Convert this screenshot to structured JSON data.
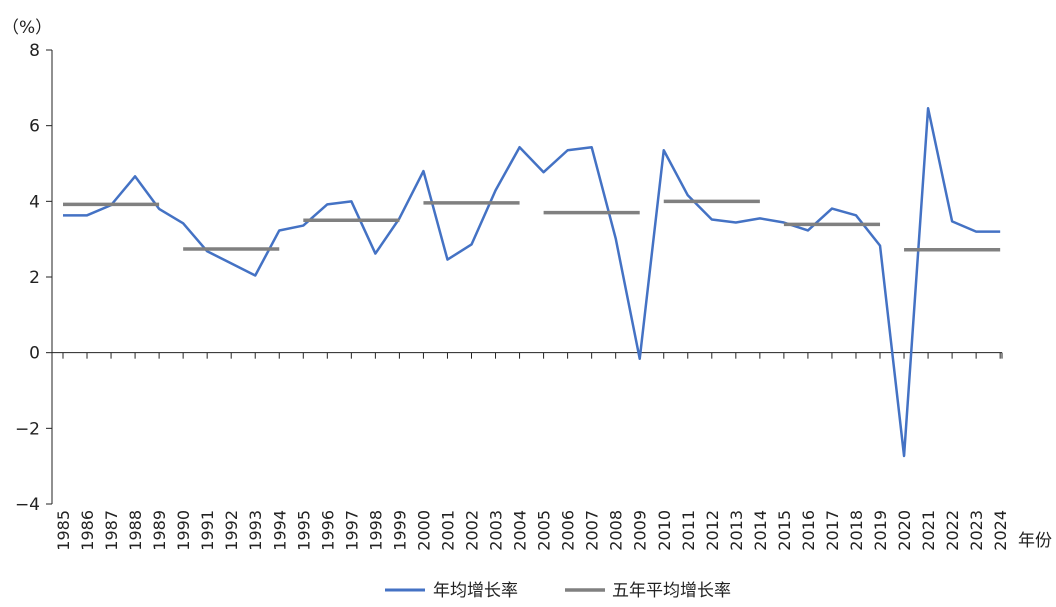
{
  "chart_data": {
    "type": "line",
    "title": "",
    "ylabel": "（%）",
    "xlabel": "年份",
    "ylim": [
      -4,
      8
    ],
    "yticks": [
      -4,
      -2,
      0,
      2,
      4,
      6,
      8
    ],
    "ytick_labels": [
      "−4",
      "−2",
      "0",
      "2",
      "4",
      "6",
      "8"
    ],
    "grid": false,
    "legend_position": "bottom-center",
    "x": [
      "1985",
      "1986",
      "1987",
      "1988",
      "1989",
      "1990",
      "1991",
      "1992",
      "1993",
      "1994",
      "1995",
      "1996",
      "1997",
      "1998",
      "1999",
      "2000",
      "2001",
      "2002",
      "2003",
      "2004",
      "2005",
      "2006",
      "2007",
      "2008",
      "2009",
      "2010",
      "2011",
      "2012",
      "2013",
      "2014",
      "2015",
      "2016",
      "2017",
      "2018",
      "2019",
      "2020",
      "2021",
      "2022",
      "2023",
      "2024"
    ],
    "series": [
      {
        "name": "年均增长率",
        "color": "#4472C4",
        "values": [
          3.63,
          3.63,
          3.9,
          4.66,
          3.8,
          3.42,
          2.68,
          2.36,
          2.04,
          3.23,
          3.36,
          3.92,
          4.0,
          2.62,
          3.55,
          4.8,
          2.46,
          2.86,
          4.29,
          5.43,
          4.77,
          5.35,
          5.43,
          3.02,
          -0.16,
          5.35,
          4.16,
          3.52,
          3.44,
          3.55,
          3.44,
          3.23,
          3.81,
          3.63,
          2.83,
          -2.73,
          6.46,
          3.47,
          3.2,
          3.2
        ]
      },
      {
        "name": "五年平均增长率",
        "color": "#808080",
        "segments": [
          {
            "from": "1985",
            "to": "1989",
            "value": 3.92
          },
          {
            "from": "1990",
            "to": "1994",
            "value": 2.74
          },
          {
            "from": "1995",
            "to": "1999",
            "value": 3.5
          },
          {
            "from": "2000",
            "to": "2004",
            "value": 3.96
          },
          {
            "from": "2005",
            "to": "2009",
            "value": 3.7
          },
          {
            "from": "2010",
            "to": "2014",
            "value": 4.0
          },
          {
            "from": "2015",
            "to": "2019",
            "value": 3.39
          },
          {
            "from": "2020",
            "to": "2024",
            "value": 2.72
          }
        ]
      }
    ]
  }
}
